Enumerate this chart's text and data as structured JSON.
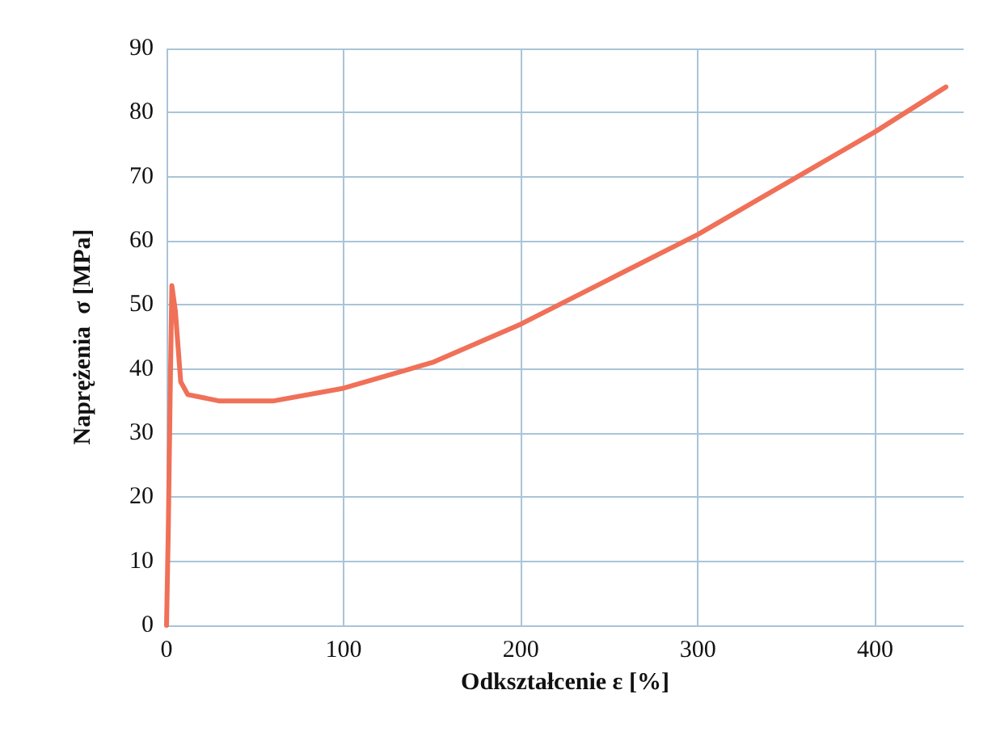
{
  "chart_data": {
    "type": "line",
    "xlabel": "Odkształcenie ε [%]",
    "ylabel": "Naprężenia  σ [MPa]",
    "series": [
      {
        "color": "#f07058",
        "x": [
          0,
          1,
          2,
          3,
          5,
          8,
          12,
          30,
          60,
          100,
          150,
          200,
          250,
          300,
          350,
          400,
          440
        ],
        "values": [
          0,
          15,
          35,
          53,
          49,
          38,
          36,
          35,
          35,
          37,
          41,
          47,
          54,
          61,
          69,
          77,
          84
        ]
      }
    ],
    "xlim": [
      0,
      450
    ],
    "xticks": [
      0,
      100,
      200,
      300,
      400
    ],
    "ylim": [
      0,
      90
    ],
    "yticks": [
      0,
      10,
      20,
      30,
      40,
      50,
      60,
      70,
      80,
      90
    ],
    "grid": true,
    "marker": "none",
    "line_style": "solid"
  }
}
